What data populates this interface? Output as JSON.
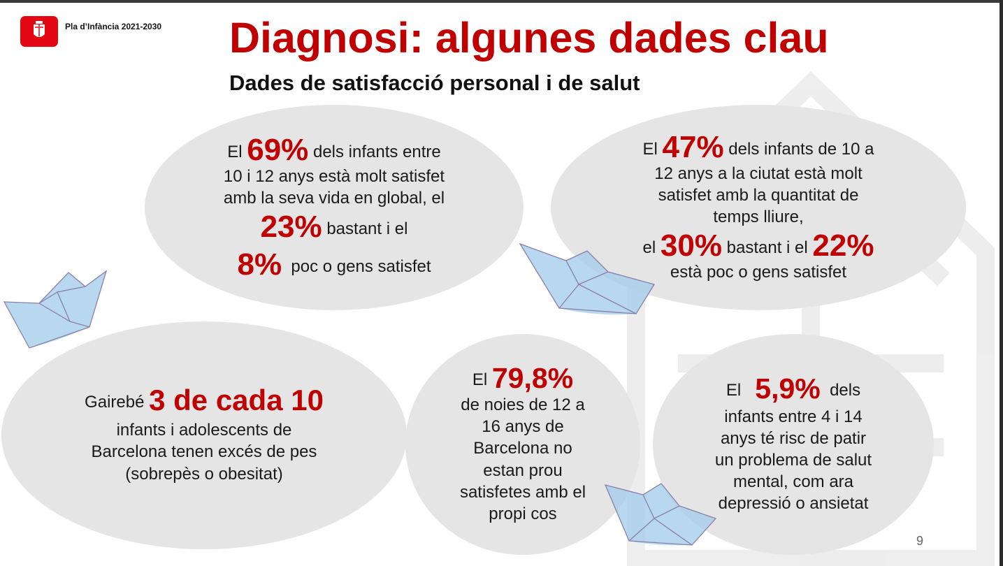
{
  "header": {
    "brand": "Pla d’Infància 2021-2030",
    "title": "Diagnosi: algunes dades clau",
    "subtitle": "Dades de satisfacció personal i de salut"
  },
  "colors": {
    "accent": "#c00000",
    "bubble": "#e5e5e5",
    "logo": "#e30613"
  },
  "icons": [
    "barcelona-logo-icon",
    "paper-boat-icon",
    "barcelona-watermark-icon"
  ],
  "stat1": {
    "l1a": "El",
    "v1": "69%",
    "l1b": "dels infants entre",
    "l2": "10 i 12 anys està molt satisfet",
    "l3": "amb la seva vida en global, el",
    "v2": "23%",
    "l4b": "bastant i el",
    "v3": "8%",
    "l5b": "poc o gens satisfet"
  },
  "stat2": {
    "l1a": "El",
    "v1": "47%",
    "l1b": "dels infants de 10 a",
    "l2": "12 anys a la ciutat està molt",
    "l3": "satisfet amb la quantitat de",
    "l4": "temps lliure,",
    "l5a": "el",
    "v2": "30%",
    "l5b": "bastant i el",
    "v3": "22%",
    "l6": "està poc o gens satisfet"
  },
  "stat3": {
    "l1a": "Gairebé",
    "v1": "3 de cada 10",
    "l2": "infants i adolescents de",
    "l3": "Barcelona tenen excés de pes",
    "l4": "(sobrepès o obesitat)"
  },
  "stat4": {
    "l1a": "El",
    "v1": "79,8%",
    "l2": "de noies de 12 a",
    "l3": "16 anys de",
    "l4": "Barcelona no",
    "l5": "estan prou",
    "l6": "satisfetes amb el",
    "l7": "propi cos"
  },
  "stat5": {
    "l1a": "El",
    "v1": "5,9%",
    "l1b": "dels",
    "l2": "infants entre 4 i 14",
    "l3": "anys té risc de patir",
    "l4": "un problema de salut",
    "l5": "mental, com ara",
    "l6": "depressió o ansietat"
  },
  "footer": {
    "page_number": "9"
  }
}
